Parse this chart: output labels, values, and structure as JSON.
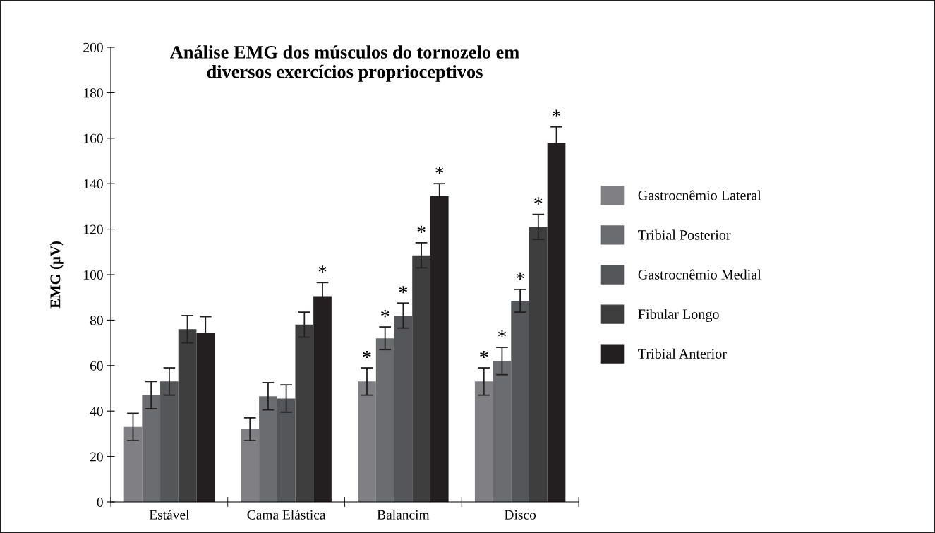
{
  "chart_data": {
    "type": "bar",
    "title": "Análise EMG dos músculos do tornozelo em\ndiversos exercícios proprioceptivos",
    "ylabel": "EMG (µV)",
    "categories": [
      "Estável",
      "Cama Elástica",
      "Balancim",
      "Disco"
    ],
    "series": [
      {
        "name": "Gastrocnêmio Lateral",
        "color": "#808084",
        "values": [
          33,
          32,
          53,
          53
        ],
        "errors": [
          6,
          5,
          6,
          6
        ],
        "value_labels": [
          null,
          null,
          "*",
          "*"
        ]
      },
      {
        "name": "Tribial Posterior",
        "color": "#6b6c70",
        "values": [
          47,
          46.5,
          72,
          62
        ],
        "errors": [
          6,
          6,
          5,
          6
        ],
        "value_labels": [
          null,
          null,
          "*",
          "*"
        ]
      },
      {
        "name": "Gastrocnêmio Medial",
        "color": "#555659",
        "values": [
          53,
          45.5,
          82,
          88.5
        ],
        "errors": [
          6,
          6,
          5.5,
          5
        ],
        "value_labels": [
          null,
          null,
          "*",
          "*"
        ]
      },
      {
        "name": "Fibular Longo",
        "color": "#3e3e3f",
        "values": [
          76,
          78,
          108.5,
          121
        ],
        "errors": [
          6,
          5.5,
          5.5,
          5.5
        ],
        "value_labels": [
          null,
          null,
          "*",
          "*"
        ]
      },
      {
        "name": "Tribial Anterior",
        "color": "#231f20",
        "values": [
          74.5,
          90.5,
          134.5,
          158
        ],
        "errors": [
          7,
          6,
          5.5,
          7
        ],
        "value_labels": [
          null,
          "*",
          "*",
          "*"
        ]
      }
    ],
    "ylim": [
      0,
      200
    ],
    "yticks": [
      0,
      20,
      40,
      60,
      80,
      100,
      120,
      140,
      160,
      180,
      200
    ],
    "grid": false,
    "legend": "right"
  }
}
